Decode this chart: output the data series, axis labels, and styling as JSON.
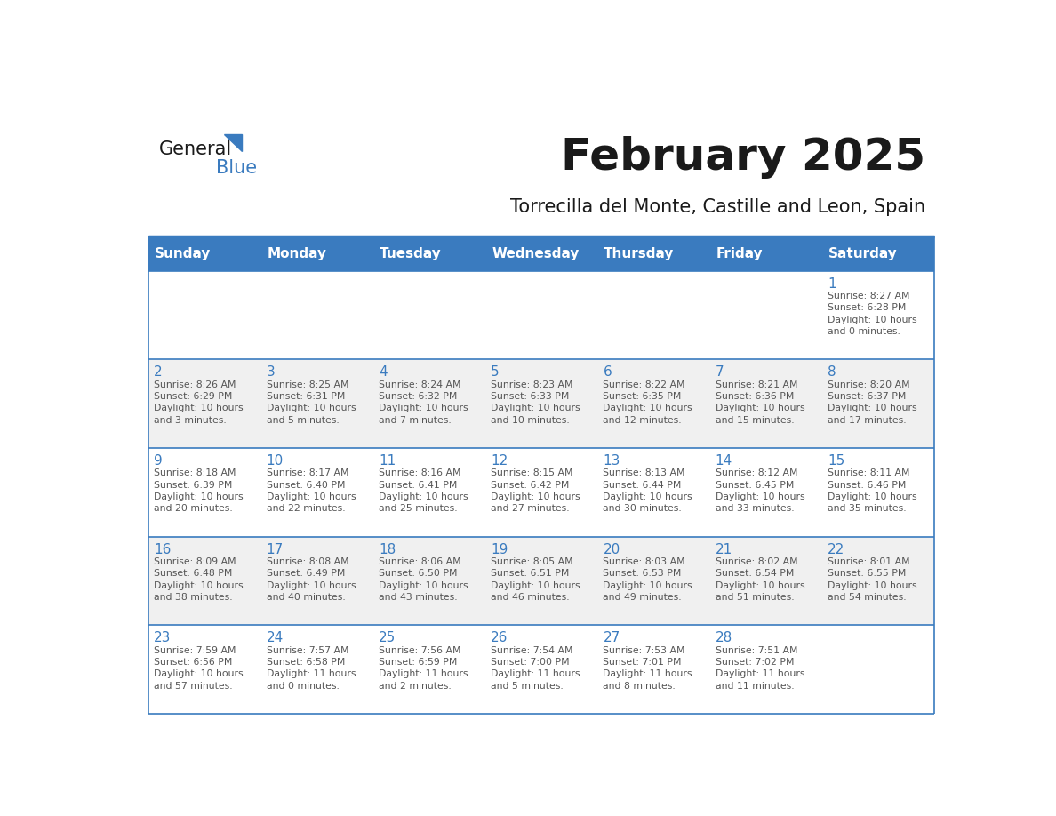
{
  "title": "February 2025",
  "subtitle": "Torrecilla del Monte, Castille and Leon, Spain",
  "header_bg": "#3a7bbf",
  "header_text_color": "#ffffff",
  "cell_bg_light": "#f0f0f0",
  "cell_bg_white": "#ffffff",
  "day_number_color": "#3a7bbf",
  "text_color": "#555555",
  "days_of_week": [
    "Sunday",
    "Monday",
    "Tuesday",
    "Wednesday",
    "Thursday",
    "Friday",
    "Saturday"
  ],
  "calendar_data": [
    [
      null,
      null,
      null,
      null,
      null,
      null,
      {
        "day": 1,
        "sunrise": "8:27 AM",
        "sunset": "6:28 PM",
        "daylight": "10 hours and 0 minutes."
      }
    ],
    [
      {
        "day": 2,
        "sunrise": "8:26 AM",
        "sunset": "6:29 PM",
        "daylight": "10 hours and 3 minutes."
      },
      {
        "day": 3,
        "sunrise": "8:25 AM",
        "sunset": "6:31 PM",
        "daylight": "10 hours and 5 minutes."
      },
      {
        "day": 4,
        "sunrise": "8:24 AM",
        "sunset": "6:32 PM",
        "daylight": "10 hours and 7 minutes."
      },
      {
        "day": 5,
        "sunrise": "8:23 AM",
        "sunset": "6:33 PM",
        "daylight": "10 hours and 10 minutes."
      },
      {
        "day": 6,
        "sunrise": "8:22 AM",
        "sunset": "6:35 PM",
        "daylight": "10 hours and 12 minutes."
      },
      {
        "day": 7,
        "sunrise": "8:21 AM",
        "sunset": "6:36 PM",
        "daylight": "10 hours and 15 minutes."
      },
      {
        "day": 8,
        "sunrise": "8:20 AM",
        "sunset": "6:37 PM",
        "daylight": "10 hours and 17 minutes."
      }
    ],
    [
      {
        "day": 9,
        "sunrise": "8:18 AM",
        "sunset": "6:39 PM",
        "daylight": "10 hours and 20 minutes."
      },
      {
        "day": 10,
        "sunrise": "8:17 AM",
        "sunset": "6:40 PM",
        "daylight": "10 hours and 22 minutes."
      },
      {
        "day": 11,
        "sunrise": "8:16 AM",
        "sunset": "6:41 PM",
        "daylight": "10 hours and 25 minutes."
      },
      {
        "day": 12,
        "sunrise": "8:15 AM",
        "sunset": "6:42 PM",
        "daylight": "10 hours and 27 minutes."
      },
      {
        "day": 13,
        "sunrise": "8:13 AM",
        "sunset": "6:44 PM",
        "daylight": "10 hours and 30 minutes."
      },
      {
        "day": 14,
        "sunrise": "8:12 AM",
        "sunset": "6:45 PM",
        "daylight": "10 hours and 33 minutes."
      },
      {
        "day": 15,
        "sunrise": "8:11 AM",
        "sunset": "6:46 PM",
        "daylight": "10 hours and 35 minutes."
      }
    ],
    [
      {
        "day": 16,
        "sunrise": "8:09 AM",
        "sunset": "6:48 PM",
        "daylight": "10 hours and 38 minutes."
      },
      {
        "day": 17,
        "sunrise": "8:08 AM",
        "sunset": "6:49 PM",
        "daylight": "10 hours and 40 minutes."
      },
      {
        "day": 18,
        "sunrise": "8:06 AM",
        "sunset": "6:50 PM",
        "daylight": "10 hours and 43 minutes."
      },
      {
        "day": 19,
        "sunrise": "8:05 AM",
        "sunset": "6:51 PM",
        "daylight": "10 hours and 46 minutes."
      },
      {
        "day": 20,
        "sunrise": "8:03 AM",
        "sunset": "6:53 PM",
        "daylight": "10 hours and 49 minutes."
      },
      {
        "day": 21,
        "sunrise": "8:02 AM",
        "sunset": "6:54 PM",
        "daylight": "10 hours and 51 minutes."
      },
      {
        "day": 22,
        "sunrise": "8:01 AM",
        "sunset": "6:55 PM",
        "daylight": "10 hours and 54 minutes."
      }
    ],
    [
      {
        "day": 23,
        "sunrise": "7:59 AM",
        "sunset": "6:56 PM",
        "daylight": "10 hours and 57 minutes."
      },
      {
        "day": 24,
        "sunrise": "7:57 AM",
        "sunset": "6:58 PM",
        "daylight": "11 hours and 0 minutes."
      },
      {
        "day": 25,
        "sunrise": "7:56 AM",
        "sunset": "6:59 PM",
        "daylight": "11 hours and 2 minutes."
      },
      {
        "day": 26,
        "sunrise": "7:54 AM",
        "sunset": "7:00 PM",
        "daylight": "11 hours and 5 minutes."
      },
      {
        "day": 27,
        "sunrise": "7:53 AM",
        "sunset": "7:01 PM",
        "daylight": "11 hours and 8 minutes."
      },
      {
        "day": 28,
        "sunrise": "7:51 AM",
        "sunset": "7:02 PM",
        "daylight": "11 hours and 11 minutes."
      },
      null
    ]
  ],
  "logo_triangle_color": "#3a7bbf",
  "border_color": "#3a7bbf"
}
